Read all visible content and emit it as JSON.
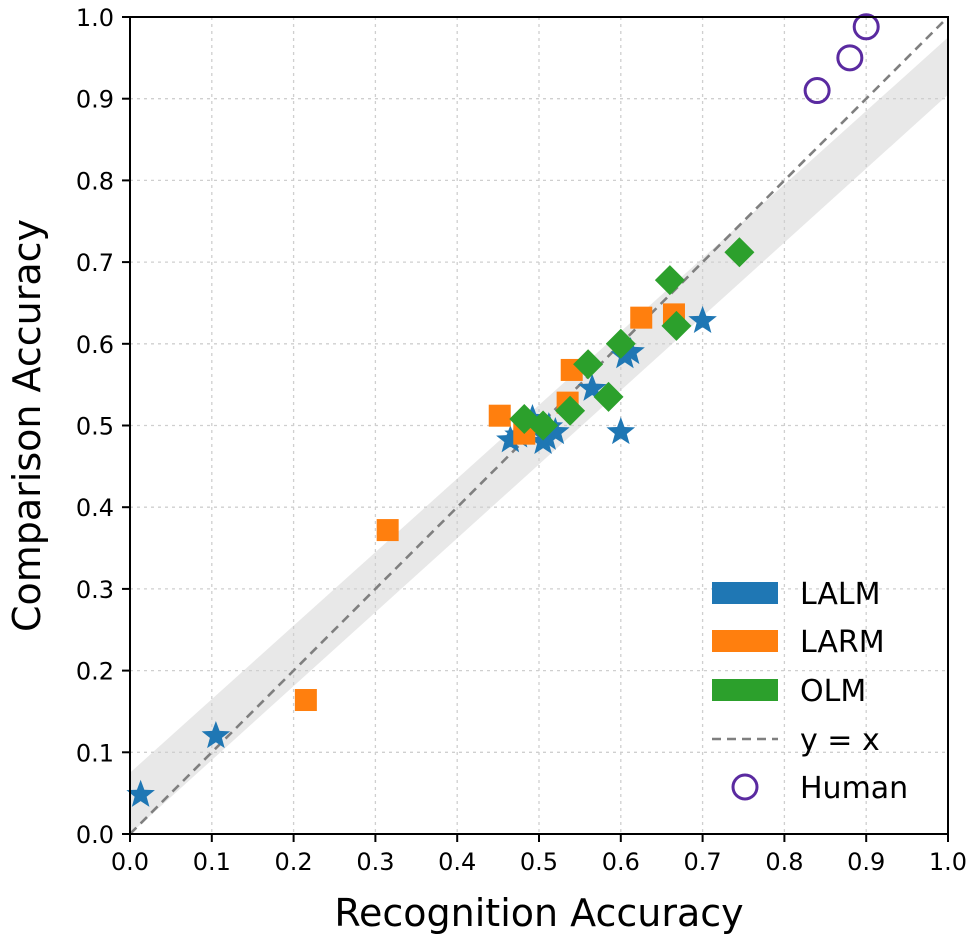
{
  "chart_data": {
    "type": "scatter",
    "xlabel": "Recognition Accuracy",
    "ylabel": "Comparison Accuracy",
    "xlim": [
      0.0,
      1.0
    ],
    "ylim": [
      0.0,
      1.0
    ],
    "xticks": [
      "0.0",
      "0.1",
      "0.2",
      "0.3",
      "0.4",
      "0.5",
      "0.6",
      "0.7",
      "0.8",
      "0.9",
      "1.0"
    ],
    "yticks": [
      "0.0",
      "0.1",
      "0.2",
      "0.3",
      "0.4",
      "0.5",
      "0.6",
      "0.7",
      "0.8",
      "0.9",
      "1.0"
    ],
    "grid": true,
    "legend_position": "lower-right",
    "series": [
      {
        "name": "LALM",
        "marker": "star",
        "color": "#1f77b4",
        "points": [
          [
            0.013,
            0.048
          ],
          [
            0.105,
            0.12
          ],
          [
            0.465,
            0.482
          ],
          [
            0.475,
            0.488
          ],
          [
            0.492,
            0.508
          ],
          [
            0.505,
            0.48
          ],
          [
            0.51,
            0.485
          ],
          [
            0.512,
            0.498
          ],
          [
            0.52,
            0.492
          ],
          [
            0.565,
            0.545
          ],
          [
            0.6,
            0.492
          ],
          [
            0.605,
            0.585
          ],
          [
            0.612,
            0.59
          ],
          [
            0.7,
            0.628
          ]
        ]
      },
      {
        "name": "LARM",
        "marker": "square",
        "color": "#ff7f0e",
        "points": [
          [
            0.215,
            0.164
          ],
          [
            0.315,
            0.372
          ],
          [
            0.452,
            0.512
          ],
          [
            0.482,
            0.49
          ],
          [
            0.535,
            0.528
          ],
          [
            0.54,
            0.568
          ],
          [
            0.625,
            0.632
          ],
          [
            0.665,
            0.636
          ]
        ]
      },
      {
        "name": "OLM",
        "marker": "diamond",
        "color": "#2ca02c",
        "points": [
          [
            0.482,
            0.508
          ],
          [
            0.505,
            0.5
          ],
          [
            0.538,
            0.518
          ],
          [
            0.56,
            0.575
          ],
          [
            0.585,
            0.535
          ],
          [
            0.6,
            0.6
          ],
          [
            0.66,
            0.678
          ],
          [
            0.668,
            0.622
          ],
          [
            0.745,
            0.712
          ]
        ]
      },
      {
        "name": "Human",
        "marker": "circle-open",
        "color": "#5a2aa0",
        "points": [
          [
            0.84,
            0.91
          ],
          [
            0.88,
            0.95
          ],
          [
            0.9,
            0.988
          ]
        ]
      }
    ],
    "reference_line": {
      "name": "y = x",
      "style": "dashed",
      "color": "#7f7f7f"
    },
    "confidence_band": {
      "color": "#e8e8e8",
      "lower": [
        [
          0.0,
          0.0
        ],
        [
          1.0,
          0.905
        ]
      ],
      "upper": [
        [
          0.0,
          0.075
        ],
        [
          1.0,
          0.975
        ]
      ]
    },
    "legend": [
      "LALM",
      "LARM",
      "OLM",
      "y = x",
      "Human"
    ]
  }
}
